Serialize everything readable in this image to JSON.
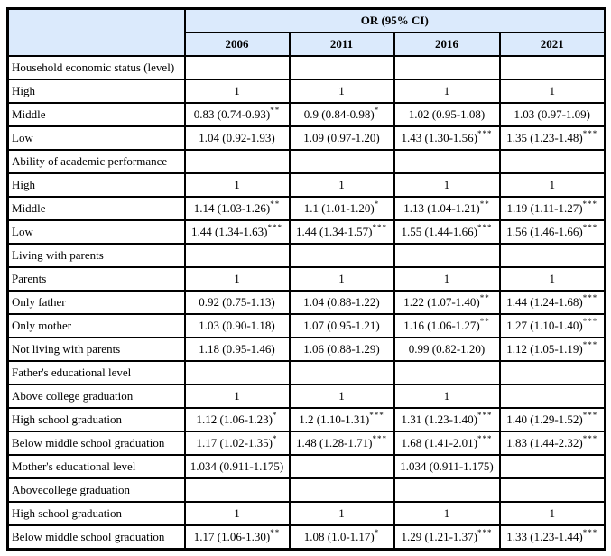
{
  "colors": {
    "header_bg": "#dbeafc",
    "border": "#000000",
    "text": "#000000"
  },
  "table": {
    "header_group": "OR (95% CI)",
    "years": [
      "2006",
      "2011",
      "2016",
      "2021"
    ],
    "rows": [
      {
        "label": "Household economic status (level)",
        "cells": [
          {
            "v": "",
            "s": ""
          },
          {
            "v": "",
            "s": ""
          },
          {
            "v": "",
            "s": ""
          },
          {
            "v": "",
            "s": ""
          }
        ]
      },
      {
        "label": "High",
        "cells": [
          {
            "v": "1",
            "s": ""
          },
          {
            "v": "1",
            "s": ""
          },
          {
            "v": "1",
            "s": ""
          },
          {
            "v": "1",
            "s": ""
          }
        ]
      },
      {
        "label": "Middle",
        "cells": [
          {
            "v": "0.83 (0.74-0.93)",
            "s": "**"
          },
          {
            "v": "0.9 (0.84-0.98)",
            "s": "*"
          },
          {
            "v": "1.02 (0.95-1.08)",
            "s": ""
          },
          {
            "v": "1.03 (0.97-1.09)",
            "s": ""
          }
        ]
      },
      {
        "label": "Low",
        "cells": [
          {
            "v": "1.04 (0.92-1.93)",
            "s": ""
          },
          {
            "v": "1.09 (0.97-1.20)",
            "s": ""
          },
          {
            "v": "1.43 (1.30-1.56)",
            "s": "***"
          },
          {
            "v": "1.35 (1.23-1.48)",
            "s": "***"
          }
        ]
      },
      {
        "label": "Ability of academic performance",
        "cells": [
          {
            "v": "",
            "s": ""
          },
          {
            "v": "",
            "s": ""
          },
          {
            "v": "",
            "s": ""
          },
          {
            "v": "",
            "s": ""
          }
        ]
      },
      {
        "label": "High",
        "cells": [
          {
            "v": "1",
            "s": ""
          },
          {
            "v": "1",
            "s": ""
          },
          {
            "v": "1",
            "s": ""
          },
          {
            "v": "1",
            "s": ""
          }
        ]
      },
      {
        "label": "Middle",
        "cells": [
          {
            "v": "1.14 (1.03-1.26)",
            "s": "**"
          },
          {
            "v": "1.1 (1.01-1.20)",
            "s": "*"
          },
          {
            "v": "1.13 (1.04-1.21)",
            "s": "**"
          },
          {
            "v": "1.19 (1.11-1.27)",
            "s": "***"
          }
        ]
      },
      {
        "label": "Low",
        "cells": [
          {
            "v": "1.44 (1.34-1.63)",
            "s": "***"
          },
          {
            "v": "1.44 (1.34-1.57)",
            "s": "***"
          },
          {
            "v": "1.55 (1.44-1.66)",
            "s": "***"
          },
          {
            "v": "1.56 (1.46-1.66)",
            "s": "***"
          }
        ]
      },
      {
        "label": "Living with parents",
        "cells": [
          {
            "v": "",
            "s": ""
          },
          {
            "v": "",
            "s": ""
          },
          {
            "v": "",
            "s": ""
          },
          {
            "v": "",
            "s": ""
          }
        ]
      },
      {
        "label": "Parents",
        "cells": [
          {
            "v": "1",
            "s": ""
          },
          {
            "v": "1",
            "s": ""
          },
          {
            "v": "1",
            "s": ""
          },
          {
            "v": "1",
            "s": ""
          }
        ]
      },
      {
        "label": "Only father",
        "cells": [
          {
            "v": "0.92 (0.75-1.13)",
            "s": ""
          },
          {
            "v": "1.04 (0.88-1.22)",
            "s": ""
          },
          {
            "v": "1.22 (1.07-1.40)",
            "s": "**"
          },
          {
            "v": "1.44 (1.24-1.68)",
            "s": "***"
          }
        ]
      },
      {
        "label": "Only mother",
        "cells": [
          {
            "v": "1.03 (0.90-1.18)",
            "s": ""
          },
          {
            "v": "1.07 (0.95-1.21)",
            "s": ""
          },
          {
            "v": "1.16 (1.06-1.27)",
            "s": "**"
          },
          {
            "v": "1.27 (1.10-1.40)",
            "s": "***"
          }
        ]
      },
      {
        "label": "Not living with parents",
        "cells": [
          {
            "v": "1.18 (0.95-1.46)",
            "s": ""
          },
          {
            "v": "1.06 (0.88-1.29)",
            "s": ""
          },
          {
            "v": "0.99 (0.82-1.20)",
            "s": ""
          },
          {
            "v": "1.12 (1.05-1.19)",
            "s": "***"
          }
        ]
      },
      {
        "label": "Father's educational level",
        "cells": [
          {
            "v": "",
            "s": ""
          },
          {
            "v": "",
            "s": ""
          },
          {
            "v": "",
            "s": ""
          },
          {
            "v": "",
            "s": ""
          }
        ]
      },
      {
        "label": "Above college graduation",
        "cells": [
          {
            "v": "1",
            "s": ""
          },
          {
            "v": "1",
            "s": ""
          },
          {
            "v": "1",
            "s": ""
          },
          {
            "v": "",
            "s": ""
          }
        ]
      },
      {
        "label": "High school graduation",
        "cells": [
          {
            "v": "1.12 (1.06-1.23)",
            "s": "*"
          },
          {
            "v": "1.2 (1.10-1.31)",
            "s": "***"
          },
          {
            "v": "1.31 (1.23-1.40)",
            "s": "***"
          },
          {
            "v": "1.40 (1.29-1.52)",
            "s": "***"
          }
        ]
      },
      {
        "label": "Below middle school graduation",
        "cells": [
          {
            "v": "1.17 (1.02-1.35)",
            "s": "*"
          },
          {
            "v": "1.48 (1.28-1.71)",
            "s": "***"
          },
          {
            "v": "1.68 (1.41-2.01)",
            "s": "***"
          },
          {
            "v": "1.83 (1.44-2.32)",
            "s": "***"
          }
        ]
      },
      {
        "label": "Mother's educational level",
        "cells": [
          {
            "v": "1.034 (0.911-1.175)",
            "s": ""
          },
          {
            "v": "",
            "s": ""
          },
          {
            "v": "1.034 (0.911-1.175)",
            "s": ""
          },
          {
            "v": "",
            "s": ""
          }
        ]
      },
      {
        "label": "Abovecollege graduation",
        "cells": [
          {
            "v": "",
            "s": ""
          },
          {
            "v": "",
            "s": ""
          },
          {
            "v": "",
            "s": ""
          },
          {
            "v": "",
            "s": ""
          }
        ]
      },
      {
        "label": "High school graduation",
        "cells": [
          {
            "v": "1",
            "s": ""
          },
          {
            "v": "1",
            "s": ""
          },
          {
            "v": "1",
            "s": ""
          },
          {
            "v": "1",
            "s": ""
          }
        ]
      },
      {
        "label": "Below middle school graduation",
        "cells": [
          {
            "v": "1.17 (1.06-1.30)",
            "s": "**"
          },
          {
            "v": "1.08 (1.0-1.17)",
            "s": "*"
          },
          {
            "v": "1.29 (1.21-1.37)",
            "s": "***"
          },
          {
            "v": "1.33 (1.23-1.44)",
            "s": "***"
          }
        ]
      }
    ]
  },
  "chart_data": {
    "type": "table",
    "title": "OR (95% CI)",
    "columns": [
      "2006",
      "2011",
      "2016",
      "2021"
    ],
    "row_labels": [
      "Household economic status (level)",
      "High",
      "Middle",
      "Low",
      "Ability of academic performance",
      "High",
      "Middle",
      "Low",
      "Living with parents",
      "Parents",
      "Only father",
      "Only mother",
      "Not living with parents",
      "Father's educational level",
      "Above college graduation",
      "High school graduation",
      "Below middle school graduation",
      "Mother's educational level",
      "Abovecollege graduation",
      "High school graduation",
      "Below middle school graduation"
    ]
  }
}
